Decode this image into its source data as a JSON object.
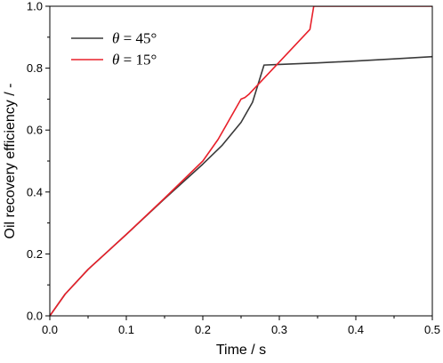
{
  "chart_data": {
    "type": "line",
    "xlabel": "Time / s",
    "ylabel": "Oil recovery efficiency / -",
    "xlim": [
      0,
      0.5
    ],
    "ylim": [
      0,
      1.0
    ],
    "xticks": [
      "0.0",
      "0.1",
      "0.2",
      "0.3",
      "0.4",
      "0.5"
    ],
    "yticks": [
      "0.0",
      "0.2",
      "0.4",
      "0.6",
      "0.8",
      "1.0"
    ],
    "grid": false,
    "legend_position": "top-left",
    "series": [
      {
        "name": "θ = 45°",
        "symbol": "θ",
        "label_rest": " = 45°",
        "color": "#3a3a3a",
        "x": [
          0,
          0.02,
          0.05,
          0.1,
          0.15,
          0.2,
          0.225,
          0.25,
          0.265,
          0.28,
          0.3,
          0.35,
          0.4,
          0.45,
          0.5
        ],
        "y": [
          0,
          0.07,
          0.15,
          0.263,
          0.378,
          0.49,
          0.55,
          0.625,
          0.69,
          0.81,
          0.812,
          0.817,
          0.823,
          0.83,
          0.837
        ]
      },
      {
        "name": "θ = 15°",
        "symbol": "θ",
        "label_rest": " = 15°",
        "color": "#e8202a",
        "x": [
          0,
          0.02,
          0.05,
          0.1,
          0.15,
          0.2,
          0.22,
          0.235,
          0.25,
          0.255,
          0.26,
          0.3,
          0.34,
          0.345,
          0.35,
          0.5
        ],
        "y": [
          0,
          0.07,
          0.15,
          0.263,
          0.38,
          0.5,
          0.57,
          0.635,
          0.7,
          0.705,
          0.715,
          0.82,
          0.925,
          1.0,
          1.0,
          1.0
        ]
      }
    ]
  }
}
